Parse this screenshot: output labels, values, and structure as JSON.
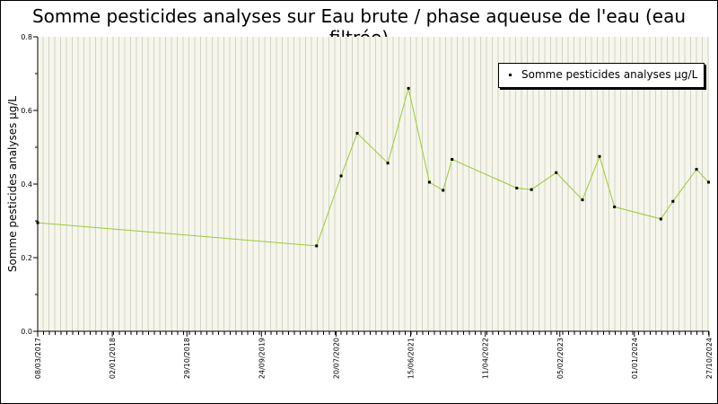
{
  "chart_data": {
    "type": "line",
    "title": "Somme pesticides analyses sur Eau brute / phase aqueuse de l'eau (eau filtrée)",
    "ylabel": "Somme pesticides analyses µg/L",
    "xlabel": "",
    "ylim": [
      0,
      0.8
    ],
    "yticks": [
      "0.0",
      "0.2",
      "0.4",
      "0.6",
      "0.8"
    ],
    "xlim": [
      "2017-03-08",
      "2024-10-27"
    ],
    "xticks": [
      "08/03/2017",
      "02/01/2018",
      "29/10/2018",
      "24/09/2019",
      "20/07/2020",
      "15/06/2021",
      "11/04/2022",
      "05/02/2023",
      "01/01/2024",
      "27/10/2024"
    ],
    "grid": true,
    "legend_position": "top-right",
    "series": [
      {
        "name": "Somme pesticides analyses µg/L",
        "color": "#99cc33",
        "points": [
          [
            "2017-03-08",
            0.295
          ],
          [
            "2020-05-10",
            0.232
          ],
          [
            "2020-08-20",
            0.422
          ],
          [
            "2020-10-26",
            0.538
          ],
          [
            "2021-03-02",
            0.457
          ],
          [
            "2021-05-27",
            0.66
          ],
          [
            "2021-08-22",
            0.405
          ],
          [
            "2021-10-18",
            0.383
          ],
          [
            "2021-11-24",
            0.467
          ],
          [
            "2022-08-20",
            0.389
          ],
          [
            "2022-10-20",
            0.385
          ],
          [
            "2023-01-31",
            0.431
          ],
          [
            "2023-05-20",
            0.357
          ],
          [
            "2023-07-30",
            0.475
          ],
          [
            "2023-09-30",
            0.338
          ],
          [
            "2024-04-10",
            0.305
          ],
          [
            "2024-05-30",
            0.353
          ],
          [
            "2024-09-05",
            0.44
          ],
          [
            "2024-10-25",
            0.405
          ]
        ]
      }
    ]
  }
}
